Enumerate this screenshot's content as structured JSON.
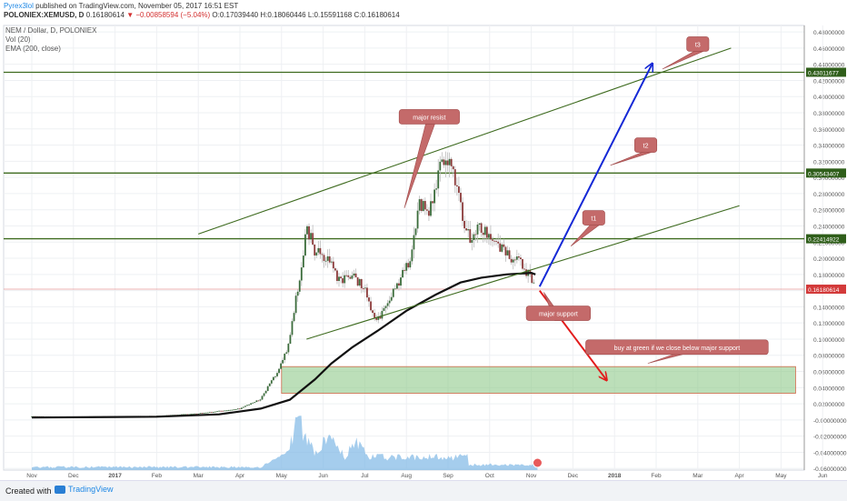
{
  "header": {
    "publisher": "Pyrex3lol",
    "published_text": "published on TradingView.com, November 05, 2017 16:51 EST",
    "symbol": "POLONIEX:XEMUSD, D",
    "last": "0.16180614",
    "change": "▼ −0.00858594 (−5.04%)",
    "open": "O:0.17039440",
    "high": "H:0.18060446",
    "low": "L:0.15591168",
    "close": "C:0.16180614"
  },
  "indicators": {
    "title": "NEM / Dollar, D, POLONIEX",
    "vol": "Vol (20)",
    "ema": "EMA (200, close)"
  },
  "footer": {
    "created": "Created with",
    "brand": "TradingView"
  },
  "colors": {
    "up": "#3a6b3a",
    "down": "#8b3a3a",
    "channel": "#3e6b1f",
    "target_arrow": "#1428d6",
    "down_arrow": "#e21c1c",
    "callout": "#c46a6a",
    "zone": "#8fc98a",
    "volume": "#7fb8e6",
    "ema": "#111111"
  },
  "chart_data": {
    "type": "candlestick",
    "title": "NEM / Dollar, D, POLONIEX",
    "x_labels": [
      "Nov",
      "Dec",
      "2017",
      "Feb",
      "Mar",
      "Apr",
      "May",
      "Jun",
      "Jul",
      "Aug",
      "Sep",
      "Oct",
      "Nov",
      "Dec",
      "2018",
      "Feb",
      "Mar",
      "Apr",
      "May",
      "Jun"
    ],
    "y_ticks": [
      "0.48000000",
      "0.46000000",
      "0.44000000",
      "0.42000000",
      "0.40000000",
      "0.38000000",
      "0.36000000",
      "0.34000000",
      "0.32000000",
      "0.30000000",
      "0.28000000",
      "0.26000000",
      "0.24000000",
      "0.22000000",
      "0.20000000",
      "0.18000000",
      "0.16000000",
      "0.14000000",
      "0.12000000",
      "0.10000000",
      "0.08000000",
      "0.06000000",
      "0.04000000",
      "0.02000000",
      "-0.00000000",
      "-0.02000000",
      "-0.04000000",
      "-0.06000000"
    ],
    "ylim": [
      -0.062,
      0.488
    ],
    "price_series": [
      {
        "x": 0,
        "y": 0.0045
      },
      {
        "x": 1,
        "y": 0.0042
      },
      {
        "x": 2,
        "y": 0.0045
      },
      {
        "x": 3,
        "y": 0.005
      },
      {
        "x": 4,
        "y": 0.008
      },
      {
        "x": 5,
        "y": 0.014
      },
      {
        "x": 5.5,
        "y": 0.026
      },
      {
        "x": 5.9,
        "y": 0.06
      },
      {
        "x": 6.15,
        "y": 0.09
      },
      {
        "x": 6.35,
        "y": 0.15
      },
      {
        "x": 6.5,
        "y": 0.19
      },
      {
        "x": 6.6,
        "y": 0.24
      },
      {
        "x": 6.8,
        "y": 0.21
      },
      {
        "x": 7.1,
        "y": 0.2
      },
      {
        "x": 7.4,
        "y": 0.17
      },
      {
        "x": 7.7,
        "y": 0.18
      },
      {
        "x": 8.0,
        "y": 0.16
      },
      {
        "x": 8.25,
        "y": 0.12
      },
      {
        "x": 8.5,
        "y": 0.14
      },
      {
        "x": 8.8,
        "y": 0.17
      },
      {
        "x": 9.1,
        "y": 0.2
      },
      {
        "x": 9.3,
        "y": 0.27
      },
      {
        "x": 9.55,
        "y": 0.26
      },
      {
        "x": 9.8,
        "y": 0.31
      },
      {
        "x": 10.0,
        "y": 0.32
      },
      {
        "x": 10.15,
        "y": 0.3
      },
      {
        "x": 10.35,
        "y": 0.25
      },
      {
        "x": 10.55,
        "y": 0.22
      },
      {
        "x": 10.75,
        "y": 0.24
      },
      {
        "x": 11.0,
        "y": 0.23
      },
      {
        "x": 11.3,
        "y": 0.21
      },
      {
        "x": 11.55,
        "y": 0.2
      },
      {
        "x": 11.8,
        "y": 0.19
      },
      {
        "x": 12.0,
        "y": 0.176
      },
      {
        "x": 12.1,
        "y": 0.1618
      }
    ],
    "ema200": [
      {
        "x": 0,
        "y": 0.003
      },
      {
        "x": 3,
        "y": 0.004
      },
      {
        "x": 4.5,
        "y": 0.007
      },
      {
        "x": 5.5,
        "y": 0.014
      },
      {
        "x": 6.2,
        "y": 0.025
      },
      {
        "x": 6.8,
        "y": 0.05
      },
      {
        "x": 7.2,
        "y": 0.07
      },
      {
        "x": 7.7,
        "y": 0.09
      },
      {
        "x": 8.3,
        "y": 0.11
      },
      {
        "x": 9.0,
        "y": 0.135
      },
      {
        "x": 9.7,
        "y": 0.155
      },
      {
        "x": 10.3,
        "y": 0.17
      },
      {
        "x": 10.8,
        "y": 0.176
      },
      {
        "x": 11.4,
        "y": 0.18
      },
      {
        "x": 12.0,
        "y": 0.182
      },
      {
        "x": 12.1,
        "y": 0.18
      }
    ],
    "horizontal_levels": [
      {
        "label": "0.43011677",
        "value": 0.43011677
      },
      {
        "label": "0.30543407",
        "value": 0.30543407
      },
      {
        "label": "0.22414922",
        "value": 0.22414922
      },
      {
        "label": "0.16180614",
        "value": 0.16180614
      }
    ],
    "channel": {
      "upper": [
        {
          "x": 4.0,
          "y": 0.23
        },
        {
          "x": 16.8,
          "y": 0.46
        }
      ],
      "lower": [
        {
          "x": 6.6,
          "y": 0.1
        },
        {
          "x": 17.0,
          "y": 0.265
        }
      ]
    },
    "buy_zone": {
      "x0": 6.0,
      "x1": 18.35,
      "y0": 0.033,
      "y1": 0.066
    },
    "target_arrow": {
      "x0": 12.2,
      "y0": 0.165,
      "x1": 14.9,
      "y1": 0.44
    },
    "down_arrow": {
      "x0": 12.2,
      "y0": 0.16,
      "x1": 13.8,
      "y1": 0.05
    },
    "annotations": [
      {
        "text": "major resist",
        "x": 9.55,
        "y": 0.375,
        "px": 8.95,
        "py": 0.262
      },
      {
        "text": "t3",
        "x": 16.0,
        "y": 0.465,
        "px": 15.15,
        "py": 0.434
      },
      {
        "text": "t2",
        "x": 14.75,
        "y": 0.34,
        "px": 13.9,
        "py": 0.315
      },
      {
        "text": "t1",
        "x": 13.5,
        "y": 0.25,
        "px": 12.95,
        "py": 0.215
      },
      {
        "text": "major support",
        "x": 12.65,
        "y": 0.132,
        "px": 12.3,
        "py": 0.158
      },
      {
        "text": "buy at green if we close below major support",
        "x": 15.5,
        "y": 0.09,
        "px": 14.8,
        "py": 0.07
      }
    ]
  }
}
